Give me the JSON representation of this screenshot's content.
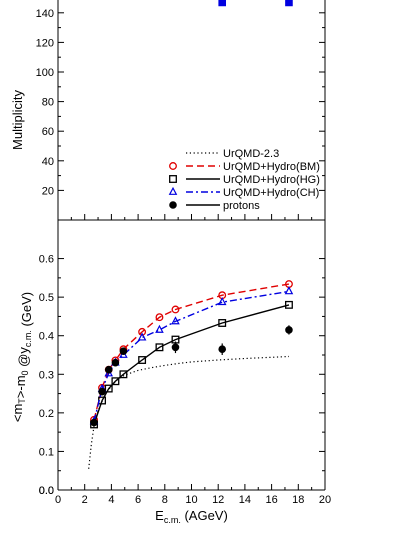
{
  "chart_data": [
    {
      "type": "line",
      "panel": "top",
      "title": "",
      "xlabel": "",
      "ylabel": "Multiplicity",
      "ylim": [
        0,
        150
      ],
      "xlim": [
        0,
        20
      ],
      "yticks": [
        20,
        40,
        60,
        80,
        100,
        120,
        140
      ],
      "grid": false,
      "legend_placement": "bottom-right",
      "legend": [
        {
          "label": "UrQMD-2.3",
          "color": "#000000",
          "style": "dotted",
          "marker": "none"
        },
        {
          "label": "UrQMD+Hydro(BM)",
          "color": "#e00000",
          "style": "dashed",
          "marker": "circle"
        },
        {
          "label": "UrQMD+Hydro(HG)",
          "color": "#000000",
          "style": "solid",
          "marker": "square"
        },
        {
          "label": "UrQMD+Hydro(CH)",
          "color": "#0000e0",
          "style": "dashdot",
          "marker": "triangle"
        },
        {
          "label": "protons",
          "color": "#000000",
          "style": "solid",
          "marker": "filled-circle"
        }
      ],
      "series": [
        {
          "name": "UrQMD+Hydro(HG)",
          "x": [
            12.3,
            17.3
          ],
          "y": [
            147,
            147
          ],
          "color": "#0000e0",
          "marker": "square-filled"
        }
      ]
    },
    {
      "type": "line",
      "panel": "bottom",
      "title": "",
      "xlabel": "E_c.m. (AGeV)",
      "ylabel": "<m_T>-m_0 @y_c.m. (GeV)",
      "xlim": [
        0,
        20
      ],
      "ylim": [
        0.0,
        0.7
      ],
      "xticks": [
        0,
        2,
        4,
        6,
        8,
        10,
        12,
        14,
        16,
        18,
        20
      ],
      "yticks": [
        0.0,
        0.1,
        0.2,
        0.3,
        0.4,
        0.5,
        0.6
      ],
      "grid": false,
      "series": [
        {
          "name": "UrQMD-2.3",
          "color": "#000000",
          "style": "dotted",
          "marker": "none",
          "x": [
            2.3,
            2.5,
            2.7,
            3.0,
            3.5,
            4.0,
            4.5,
            5.0,
            6.0,
            7.0,
            8.0,
            9.0,
            10.0,
            12.0,
            14.0,
            16.0,
            17.3
          ],
          "y": [
            0.055,
            0.12,
            0.165,
            0.205,
            0.245,
            0.27,
            0.288,
            0.298,
            0.31,
            0.317,
            0.323,
            0.328,
            0.332,
            0.337,
            0.341,
            0.344,
            0.346
          ]
        },
        {
          "name": "UrQMD+Hydro(BM)",
          "color": "#e00000",
          "style": "dashed",
          "marker": "circle",
          "x": [
            2.7,
            3.3,
            3.8,
            4.3,
            4.9,
            6.3,
            7.6,
            8.8,
            12.3,
            17.3
          ],
          "y": [
            0.182,
            0.265,
            0.312,
            0.336,
            0.365,
            0.41,
            0.448,
            0.468,
            0.505,
            0.534
          ]
        },
        {
          "name": "UrQMD+Hydro(HG)",
          "color": "#000000",
          "style": "solid",
          "marker": "square",
          "x": [
            2.7,
            3.3,
            3.8,
            4.3,
            4.9,
            6.3,
            7.6,
            8.8,
            12.3,
            17.3
          ],
          "y": [
            0.17,
            0.232,
            0.263,
            0.282,
            0.3,
            0.337,
            0.37,
            0.39,
            0.433,
            0.48
          ]
        },
        {
          "name": "UrQMD+Hydro(CH)",
          "color": "#0000e0",
          "style": "dashdot",
          "marker": "triangle",
          "x": [
            2.7,
            3.3,
            3.8,
            4.3,
            4.9,
            6.3,
            7.6,
            8.8,
            12.3,
            17.3
          ],
          "y": [
            0.178,
            0.262,
            0.302,
            0.33,
            0.35,
            0.395,
            0.415,
            0.437,
            0.487,
            0.515
          ]
        },
        {
          "name": "protons",
          "color": "#000000",
          "style": "none",
          "marker": "filled-circle",
          "x": [
            2.7,
            3.3,
            3.8,
            4.3,
            4.9,
            8.8,
            12.3,
            17.3
          ],
          "y": [
            0.175,
            0.255,
            0.312,
            0.33,
            0.36,
            0.37,
            0.365,
            0.415
          ],
          "err": [
            0.008,
            0.008,
            0.008,
            0.008,
            0.008,
            0.015,
            0.015,
            0.012
          ]
        }
      ]
    }
  ]
}
